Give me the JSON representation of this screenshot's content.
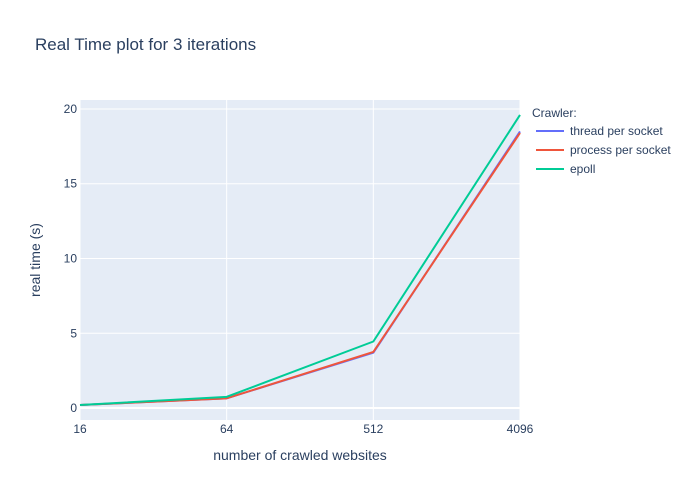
{
  "chart_data": {
    "type": "line",
    "title": "Real Time plot for 3 iterations",
    "xlabel": "number of crawled websites",
    "ylabel": "real time (s)",
    "x": [
      "16",
      "64",
      "512",
      "4096"
    ],
    "yticks": [
      "0",
      "5",
      "10",
      "15",
      "20"
    ],
    "ylim": [
      -0.8,
      20.6
    ],
    "legend_title": "Crawler:",
    "legend_position": "right",
    "grid": true,
    "background": "#e5ecf6",
    "series": [
      {
        "name": "thread per socket",
        "color": "#636efa",
        "values": [
          0.2,
          0.65,
          3.7,
          18.5
        ]
      },
      {
        "name": "process per socket",
        "color": "#ef553b",
        "values": [
          0.2,
          0.65,
          3.75,
          18.4
        ]
      },
      {
        "name": "epoll",
        "color": "#00cc96",
        "values": [
          0.2,
          0.75,
          4.45,
          19.6
        ]
      }
    ]
  }
}
